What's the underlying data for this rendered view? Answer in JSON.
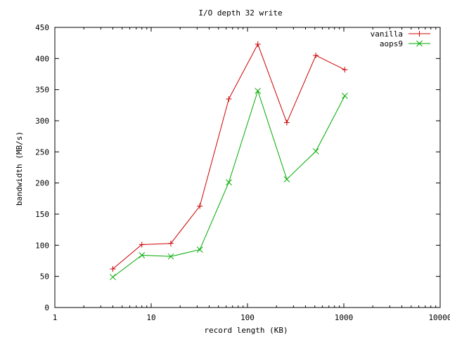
{
  "chart_data": {
    "type": "line",
    "title": "I/O depth 32 write",
    "xlabel": "record length (KB)",
    "ylabel": "bandwidth (MB/s)",
    "x_scale": "log",
    "xlim": [
      1,
      10000
    ],
    "ylim": [
      0,
      450
    ],
    "x_ticks": [
      1,
      10,
      100,
      1000,
      10000
    ],
    "x_tick_labels": [
      "1",
      "10",
      "100",
      "1000",
      "10000"
    ],
    "y_ticks": [
      0,
      50,
      100,
      150,
      200,
      250,
      300,
      350,
      400,
      450
    ],
    "y_tick_labels": [
      "0",
      "50",
      "100",
      "150",
      "200",
      "250",
      "300",
      "350",
      "400",
      "450"
    ],
    "grid": false,
    "legend_position": "top-right",
    "x": [
      4,
      8,
      16,
      32,
      64,
      128,
      256,
      512,
      1024
    ],
    "series": [
      {
        "name": "vanilla",
        "color": "#cc0000",
        "marker": "plus",
        "values": [
          62,
          101,
          103,
          163,
          335,
          423,
          297,
          405,
          382
        ]
      },
      {
        "name": "aops9",
        "color": "#00aa00",
        "marker": "cross",
        "values": [
          49,
          84,
          82,
          93,
          201,
          348,
          206,
          251,
          340
        ]
      }
    ]
  }
}
